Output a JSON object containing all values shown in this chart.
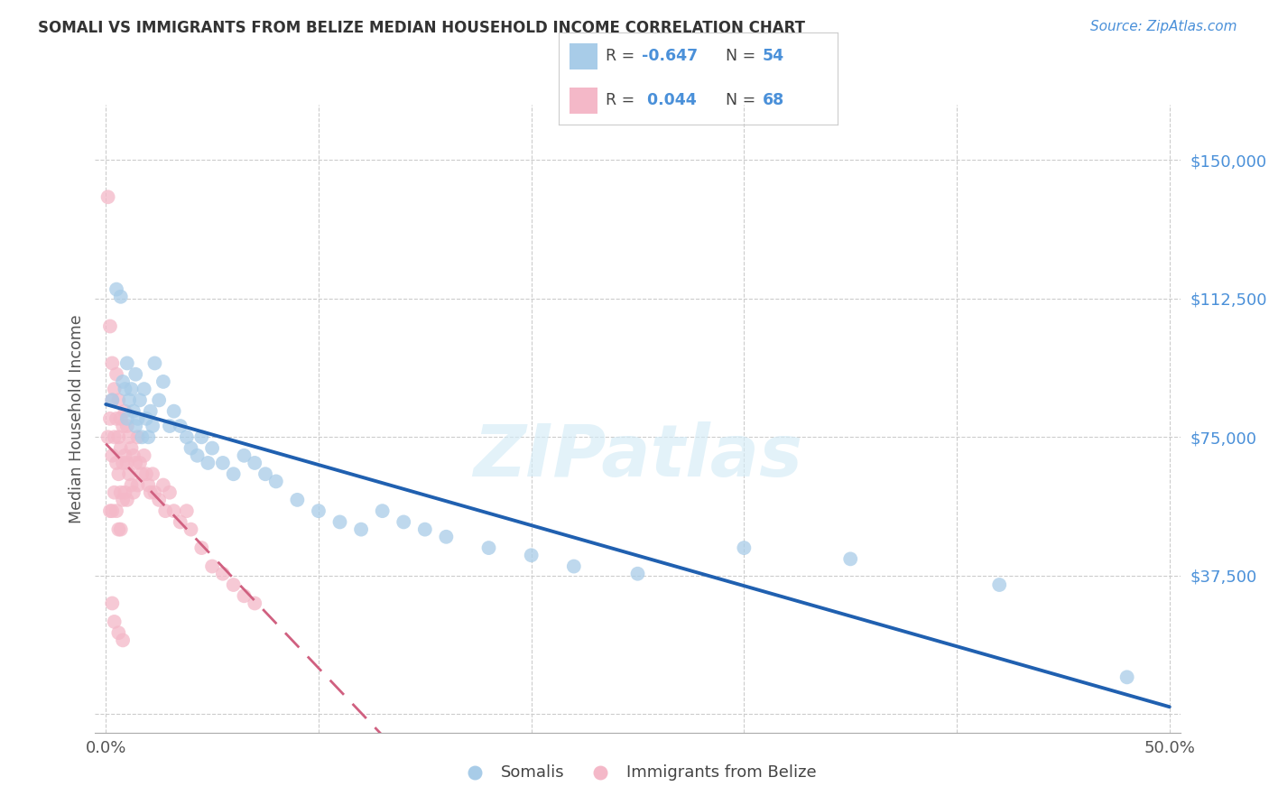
{
  "title": "SOMALI VS IMMIGRANTS FROM BELIZE MEDIAN HOUSEHOLD INCOME CORRELATION CHART",
  "source": "Source: ZipAtlas.com",
  "ylabel": "Median Household Income",
  "yticks": [
    0,
    37500,
    75000,
    112500,
    150000
  ],
  "ytick_labels": [
    "",
    "$37,500",
    "$75,000",
    "$112,500",
    "$150,000"
  ],
  "xlim": [
    -0.005,
    0.505
  ],
  "ylim": [
    -5000,
    165000
  ],
  "legend_r_somali": "-0.647",
  "legend_n_somali": "54",
  "legend_r_belize": "0.044",
  "legend_n_belize": "68",
  "somali_color": "#a8cce8",
  "belize_color": "#f4b8c8",
  "trend_somali_color": "#2060b0",
  "trend_belize_color": "#d06080",
  "somali_x": [
    0.003,
    0.005,
    0.007,
    0.008,
    0.009,
    0.01,
    0.01,
    0.011,
    0.012,
    0.013,
    0.014,
    0.014,
    0.015,
    0.016,
    0.017,
    0.018,
    0.019,
    0.02,
    0.021,
    0.022,
    0.023,
    0.025,
    0.027,
    0.03,
    0.032,
    0.035,
    0.038,
    0.04,
    0.043,
    0.045,
    0.048,
    0.05,
    0.055,
    0.06,
    0.065,
    0.07,
    0.075,
    0.08,
    0.09,
    0.1,
    0.11,
    0.12,
    0.13,
    0.14,
    0.15,
    0.16,
    0.18,
    0.2,
    0.22,
    0.25,
    0.3,
    0.35,
    0.42,
    0.48
  ],
  "somali_y": [
    85000,
    115000,
    113000,
    90000,
    88000,
    95000,
    80000,
    85000,
    88000,
    82000,
    78000,
    92000,
    80000,
    85000,
    75000,
    88000,
    80000,
    75000,
    82000,
    78000,
    95000,
    85000,
    90000,
    78000,
    82000,
    78000,
    75000,
    72000,
    70000,
    75000,
    68000,
    72000,
    68000,
    65000,
    70000,
    68000,
    65000,
    63000,
    58000,
    55000,
    52000,
    50000,
    55000,
    52000,
    50000,
    48000,
    45000,
    43000,
    40000,
    38000,
    45000,
    42000,
    35000,
    10000
  ],
  "belize_x": [
    0.001,
    0.001,
    0.002,
    0.002,
    0.002,
    0.003,
    0.003,
    0.003,
    0.003,
    0.004,
    0.004,
    0.004,
    0.005,
    0.005,
    0.005,
    0.005,
    0.006,
    0.006,
    0.006,
    0.006,
    0.007,
    0.007,
    0.007,
    0.007,
    0.008,
    0.008,
    0.008,
    0.009,
    0.009,
    0.009,
    0.01,
    0.01,
    0.01,
    0.011,
    0.011,
    0.012,
    0.012,
    0.013,
    0.013,
    0.014,
    0.015,
    0.015,
    0.016,
    0.017,
    0.018,
    0.019,
    0.02,
    0.021,
    0.022,
    0.023,
    0.025,
    0.027,
    0.028,
    0.03,
    0.032,
    0.035,
    0.038,
    0.04,
    0.045,
    0.05,
    0.055,
    0.06,
    0.065,
    0.07,
    0.003,
    0.004,
    0.006,
    0.008
  ],
  "belize_y": [
    140000,
    75000,
    105000,
    80000,
    55000,
    95000,
    85000,
    70000,
    55000,
    88000,
    75000,
    60000,
    92000,
    80000,
    68000,
    55000,
    85000,
    75000,
    65000,
    50000,
    80000,
    72000,
    60000,
    50000,
    78000,
    68000,
    58000,
    82000,
    70000,
    60000,
    78000,
    68000,
    58000,
    75000,
    65000,
    72000,
    62000,
    70000,
    60000,
    68000,
    75000,
    62000,
    68000,
    65000,
    70000,
    65000,
    62000,
    60000,
    65000,
    60000,
    58000,
    62000,
    55000,
    60000,
    55000,
    52000,
    55000,
    50000,
    45000,
    40000,
    38000,
    35000,
    32000,
    30000,
    30000,
    25000,
    22000,
    20000
  ]
}
